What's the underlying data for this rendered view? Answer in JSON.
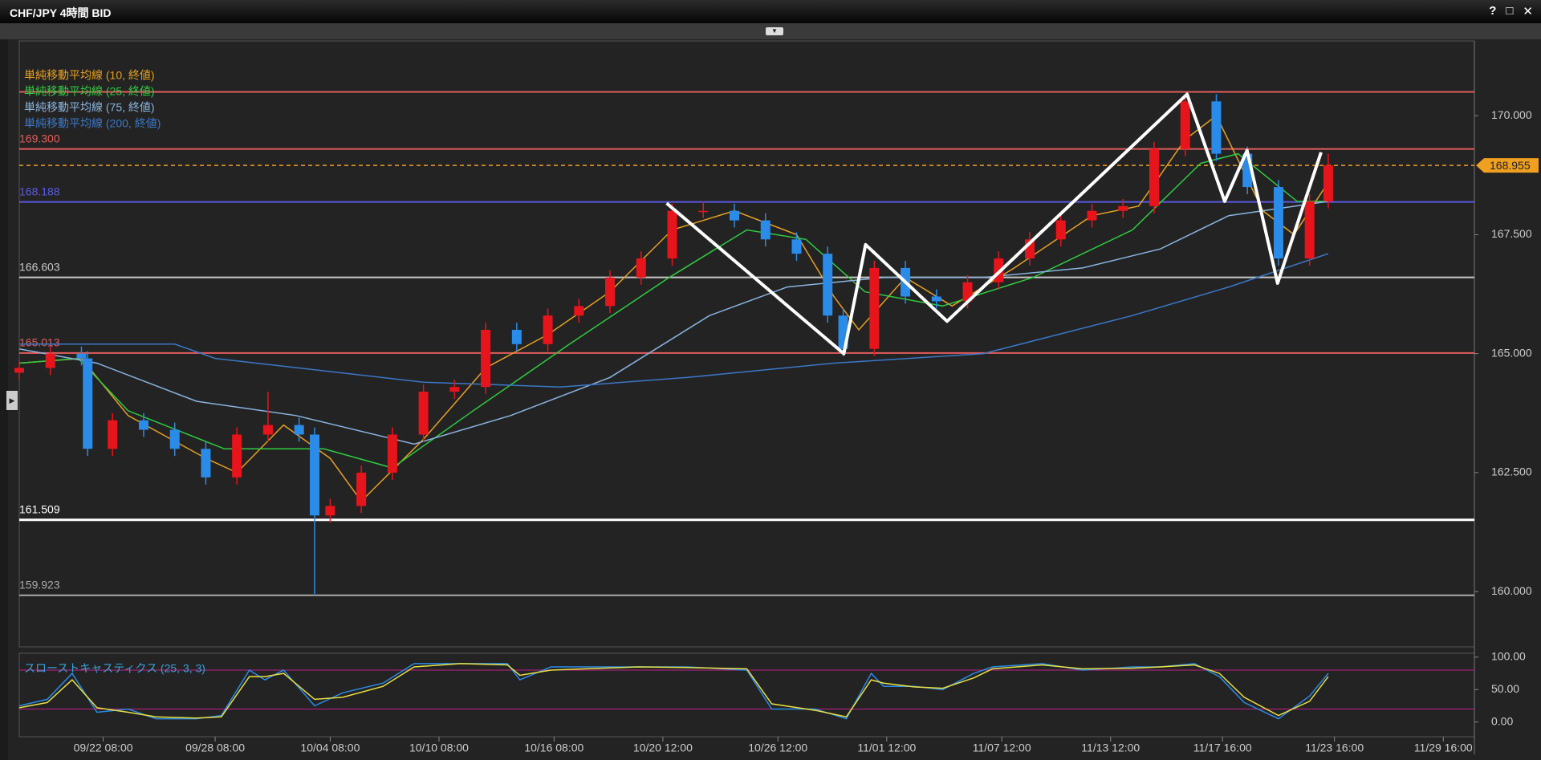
{
  "window": {
    "title": "CHF/JPY 4時間 BID",
    "controls": [
      "?",
      "□",
      "✕"
    ]
  },
  "chart_data": [
    {
      "type": "candlestick",
      "xlim": [
        0,
        468
      ],
      "ylim": [
        158.84,
        171.57
      ],
      "yticks": [
        {
          "value": 160,
          "label": "160.000"
        },
        {
          "value": 162.5,
          "label": "162.500"
        },
        {
          "value": 165,
          "label": "165.000"
        },
        {
          "value": 167.5,
          "label": "167.500"
        },
        {
          "value": 170,
          "label": "170.000"
        }
      ],
      "candles": {
        "up_color": "#e8141c",
        "down_color": "#2a8be8",
        "x": [
          0,
          10,
          20,
          22,
          30,
          40,
          50,
          60,
          70,
          80,
          90,
          95,
          100,
          110,
          120,
          130,
          140,
          150,
          160,
          170,
          180,
          190,
          200,
          210,
          220,
          230,
          240,
          250,
          260,
          265,
          275,
          285,
          295,
          305,
          315,
          325,
          335,
          345,
          355,
          365,
          375,
          385,
          395,
          405,
          415,
          421
        ],
        "open": [
          164.6,
          164.7,
          165.0,
          164.9,
          163.0,
          163.6,
          163.4,
          163.0,
          162.4,
          163.3,
          163.5,
          163.3,
          161.6,
          161.8,
          162.5,
          163.3,
          164.2,
          164.3,
          165.5,
          165.2,
          165.8,
          166.0,
          166.6,
          167.0,
          168.0,
          168.0,
          167.8,
          167.4,
          167.1,
          165.8,
          165.1,
          166.8,
          166.2,
          166.1,
          166.5,
          167.0,
          167.4,
          167.8,
          168.0,
          168.1,
          169.3,
          170.3,
          169.2,
          168.5,
          167.0,
          168.2
        ],
        "high": [
          164.85,
          165.15,
          165.15,
          165.05,
          163.75,
          163.75,
          163.55,
          163.15,
          163.45,
          164.2,
          163.65,
          163.45,
          161.95,
          162.65,
          163.45,
          164.35,
          164.45,
          165.65,
          165.65,
          165.95,
          166.15,
          166.75,
          167.15,
          168.15,
          168.2,
          168.15,
          167.95,
          167.55,
          167.25,
          165.95,
          166.95,
          166.95,
          166.35,
          166.65,
          167.15,
          167.55,
          167.95,
          168.15,
          168.25,
          169.45,
          170.45,
          170.45,
          169.35,
          168.65,
          168.35,
          169.2
        ],
        "low": [
          164.45,
          164.55,
          164.75,
          162.85,
          162.85,
          163.25,
          162.85,
          162.25,
          162.25,
          163.15,
          163.15,
          159.92,
          161.45,
          161.65,
          162.35,
          163.15,
          164.05,
          164.15,
          165.05,
          165.05,
          165.65,
          165.85,
          166.45,
          166.85,
          167.85,
          167.65,
          167.25,
          166.95,
          165.65,
          164.95,
          164.95,
          166.05,
          165.95,
          165.95,
          166.35,
          166.85,
          167.25,
          167.65,
          167.85,
          167.95,
          169.15,
          169.05,
          168.35,
          166.85,
          166.85,
          168.05
        ],
        "close": [
          164.7,
          165.0,
          164.9,
          163.0,
          163.6,
          163.4,
          163.0,
          162.4,
          163.3,
          163.5,
          163.3,
          161.6,
          161.8,
          162.5,
          163.3,
          164.2,
          164.3,
          165.5,
          165.2,
          165.8,
          166.0,
          166.6,
          167.0,
          168.0,
          168.0,
          167.8,
          167.4,
          167.1,
          165.8,
          165.1,
          166.8,
          166.2,
          166.1,
          166.5,
          167.0,
          167.4,
          167.8,
          168.0,
          168.1,
          169.3,
          170.3,
          169.2,
          168.5,
          167.0,
          168.2,
          168.955
        ]
      },
      "series": [
        {
          "name": "単純移動平均線 (10, 終値)",
          "color": "#e8a020",
          "x": [
            0,
            20,
            35,
            60,
            70,
            85,
            100,
            110,
            130,
            150,
            170,
            190,
            210,
            230,
            250,
            262,
            270,
            285,
            300,
            320,
            345,
            360,
            375,
            385,
            400,
            410,
            421
          ],
          "values": [
            164.8,
            164.9,
            163.7,
            162.8,
            162.5,
            163.5,
            162.8,
            161.9,
            163.2,
            164.7,
            165.4,
            166.3,
            167.6,
            168.0,
            167.5,
            166.2,
            165.5,
            166.6,
            166.0,
            166.8,
            167.9,
            168.1,
            169.5,
            170.0,
            168.0,
            167.5,
            168.6
          ]
        },
        {
          "name": "単純移動平均線 (25, 終値)",
          "color": "#2ecc40",
          "x": [
            0,
            19,
            35,
            66,
            98,
            120,
            146,
            177,
            209,
            234,
            253,
            272,
            297,
            326,
            358,
            380,
            392,
            411,
            421
          ],
          "values": [
            164.8,
            164.9,
            163.8,
            163.0,
            163.0,
            162.6,
            163.8,
            165.2,
            166.6,
            167.6,
            167.4,
            166.3,
            166.0,
            166.6,
            167.6,
            169.0,
            169.2,
            168.2,
            168.2
          ]
        },
        {
          "name": "単純移動平均線 (75, 終値)",
          "color": "#8ab4e0",
          "x": [
            0,
            25,
            57,
            89,
            127,
            158,
            190,
            222,
            247,
            278,
            310,
            342,
            367,
            389,
            421
          ],
          "values": [
            165.1,
            164.8,
            164.0,
            163.7,
            163.1,
            163.7,
            164.5,
            165.8,
            166.4,
            166.6,
            166.6,
            166.8,
            167.2,
            167.9,
            168.2
          ]
        },
        {
          "name": "単純移動平均線 (200, 終値)",
          "color": "#3a78c8",
          "x": [
            0,
            50,
            63,
            130,
            174,
            215,
            262,
            310,
            358,
            389,
            421
          ],
          "values": [
            165.2,
            165.2,
            164.9,
            164.4,
            164.3,
            164.5,
            164.8,
            165.0,
            165.8,
            166.4,
            167.1
          ]
        }
      ],
      "levels": [
        {
          "value": 170.5,
          "color": "#e35d5d"
        },
        {
          "value": 169.3,
          "label": "169.300",
          "color": "#e35d5d"
        },
        {
          "value": 168.188,
          "label": "168.188",
          "color": "#5a5ae0"
        },
        {
          "value": 166.603,
          "label": "166.603",
          "color": "#c8c8c8"
        },
        {
          "value": 165.013,
          "label": "165.013",
          "color": "#e35d5d"
        },
        {
          "value": 161.509,
          "label": "161.509",
          "color": "#ffffff"
        },
        {
          "value": 159.923,
          "label": "159.923",
          "color": "#aaaaaa"
        }
      ],
      "last": {
        "value": 168.955,
        "label": "168.955",
        "color": "#f0a020"
      },
      "pattern": {
        "color": "#ffffff",
        "x": [
          208.2,
          265.2,
          272.2,
          298.4,
          375.6,
          387.7,
          394.9,
          404.7,
          418.7
        ],
        "y": [
          168.16,
          165.0,
          167.29,
          165.68,
          170.45,
          168.2,
          169.27,
          166.48,
          169.23
        ]
      }
    },
    {
      "type": "line",
      "title": "スローストキャスティクス (25, 3, 3)",
      "xlim": [
        0,
        468
      ],
      "ylim": [
        -22.7,
        106
      ],
      "yticks": [
        {
          "value": 0,
          "label": "0.00"
        },
        {
          "value": 50,
          "label": "50.00"
        },
        {
          "value": 100,
          "label": "100.00"
        }
      ],
      "xticks": [
        {
          "value": 27,
          "label": "09/22 08:00"
        },
        {
          "value": 63,
          "label": "09/28 08:00"
        },
        {
          "value": 100,
          "label": "10/04 08:00"
        },
        {
          "value": 135,
          "label": "10/10 08:00"
        },
        {
          "value": 172,
          "label": "10/16 08:00"
        },
        {
          "value": 207,
          "label": "10/20 12:00"
        },
        {
          "value": 244,
          "label": "10/26 12:00"
        },
        {
          "value": 279,
          "label": "11/01 12:00"
        },
        {
          "value": 316,
          "label": "11/07 12:00"
        },
        {
          "value": 351,
          "label": "11/13 12:00"
        },
        {
          "value": 387,
          "label": "11/17 16:00"
        },
        {
          "value": 423,
          "label": "11/23 16:00"
        },
        {
          "value": 458,
          "label": "11/29 16:00"
        }
      ],
      "levels": [
        20,
        80
      ],
      "level_color": "#c0208a",
      "x": [
        0,
        9,
        17,
        25,
        35,
        44,
        57,
        65,
        74,
        79,
        85,
        95,
        104,
        117,
        127,
        142,
        157,
        161,
        171,
        199,
        215,
        234,
        242,
        256,
        266,
        274,
        278,
        288,
        297,
        307,
        313,
        329,
        342,
        358,
        367,
        378,
        386,
        394,
        405,
        415,
        421
      ],
      "series": [
        {
          "color": "#2a8be8",
          "values": [
            25,
            35,
            75,
            15,
            20,
            5,
            5,
            10,
            80,
            65,
            80,
            25,
            45,
            60,
            90,
            90,
            90,
            65,
            85,
            85,
            85,
            80,
            20,
            20,
            5,
            75,
            55,
            55,
            50,
            75,
            85,
            90,
            80,
            85,
            85,
            90,
            70,
            30,
            5,
            40,
            75
          ]
        },
        {
          "color": "#e8e040",
          "values": [
            22,
            30,
            65,
            22,
            15,
            8,
            6,
            8,
            70,
            70,
            75,
            35,
            38,
            55,
            85,
            90,
            88,
            72,
            80,
            85,
            84,
            82,
            28,
            18,
            8,
            65,
            60,
            54,
            52,
            68,
            82,
            88,
            82,
            83,
            85,
            88,
            75,
            38,
            10,
            32,
            70
          ]
        }
      ]
    }
  ]
}
